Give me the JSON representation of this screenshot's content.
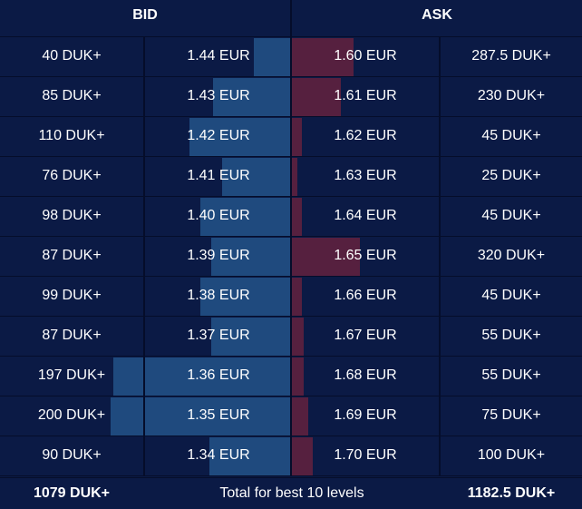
{
  "header": {
    "bid_label": "BID",
    "ask_label": "ASK"
  },
  "rows": [
    {
      "bid_qty": "40 DUK+",
      "bid_price": "1.44 EUR",
      "ask_price": "1.60 EUR",
      "ask_qty": "287.5 DUK+",
      "bid_depth": 0.2,
      "ask_depth": 0.9
    },
    {
      "bid_qty": "85 DUK+",
      "bid_price": "1.43 EUR",
      "ask_price": "1.61 EUR",
      "ask_qty": "230 DUK+",
      "bid_depth": 0.43,
      "ask_depth": 0.72
    },
    {
      "bid_qty": "110 DUK+",
      "bid_price": "1.42 EUR",
      "ask_price": "1.62 EUR",
      "ask_qty": "45 DUK+",
      "bid_depth": 0.56,
      "ask_depth": 0.14
    },
    {
      "bid_qty": "76 DUK+",
      "bid_price": "1.41 EUR",
      "ask_price": "1.63 EUR",
      "ask_qty": "25 DUK+",
      "bid_depth": 0.38,
      "ask_depth": 0.08
    },
    {
      "bid_qty": "98 DUK+",
      "bid_price": "1.40 EUR",
      "ask_price": "1.64 EUR",
      "ask_qty": "45 DUK+",
      "bid_depth": 0.5,
      "ask_depth": 0.14
    },
    {
      "bid_qty": "87 DUK+",
      "bid_price": "1.39 EUR",
      "ask_price": "1.65 EUR",
      "ask_qty": "320 DUK+",
      "bid_depth": 0.44,
      "ask_depth": 1.0
    },
    {
      "bid_qty": "99 DUK+",
      "bid_price": "1.38 EUR",
      "ask_price": "1.66 EUR",
      "ask_qty": "45 DUK+",
      "bid_depth": 0.5,
      "ask_depth": 0.14
    },
    {
      "bid_qty": "87 DUK+",
      "bid_price": "1.37 EUR",
      "ask_price": "1.67 EUR",
      "ask_qty": "55 DUK+",
      "bid_depth": 0.44,
      "ask_depth": 0.17
    },
    {
      "bid_qty": "197 DUK+",
      "bid_price": "1.36 EUR",
      "ask_price": "1.68 EUR",
      "ask_qty": "55 DUK+",
      "bid_depth": 0.985,
      "ask_depth": 0.17
    },
    {
      "bid_qty": "200 DUK+",
      "bid_price": "1.35 EUR",
      "ask_price": "1.69 EUR",
      "ask_qty": "75 DUK+",
      "bid_depth": 1.0,
      "ask_depth": 0.24
    },
    {
      "bid_qty": "90 DUK+",
      "bid_price": "1.34 EUR",
      "ask_price": "1.70 EUR",
      "ask_qty": "100 DUK+",
      "bid_depth": 0.45,
      "ask_depth": 0.31
    }
  ],
  "footer": {
    "bid_total": "1079 DUK+",
    "label": "Total for best 10 levels",
    "ask_total": "1182.5 DUK+"
  },
  "colors": {
    "background": "#0b1a45",
    "bid_bar": "#1f4a7e",
    "ask_bar": "#56203f",
    "grid": "#050d2a",
    "text": "#ffffff"
  }
}
